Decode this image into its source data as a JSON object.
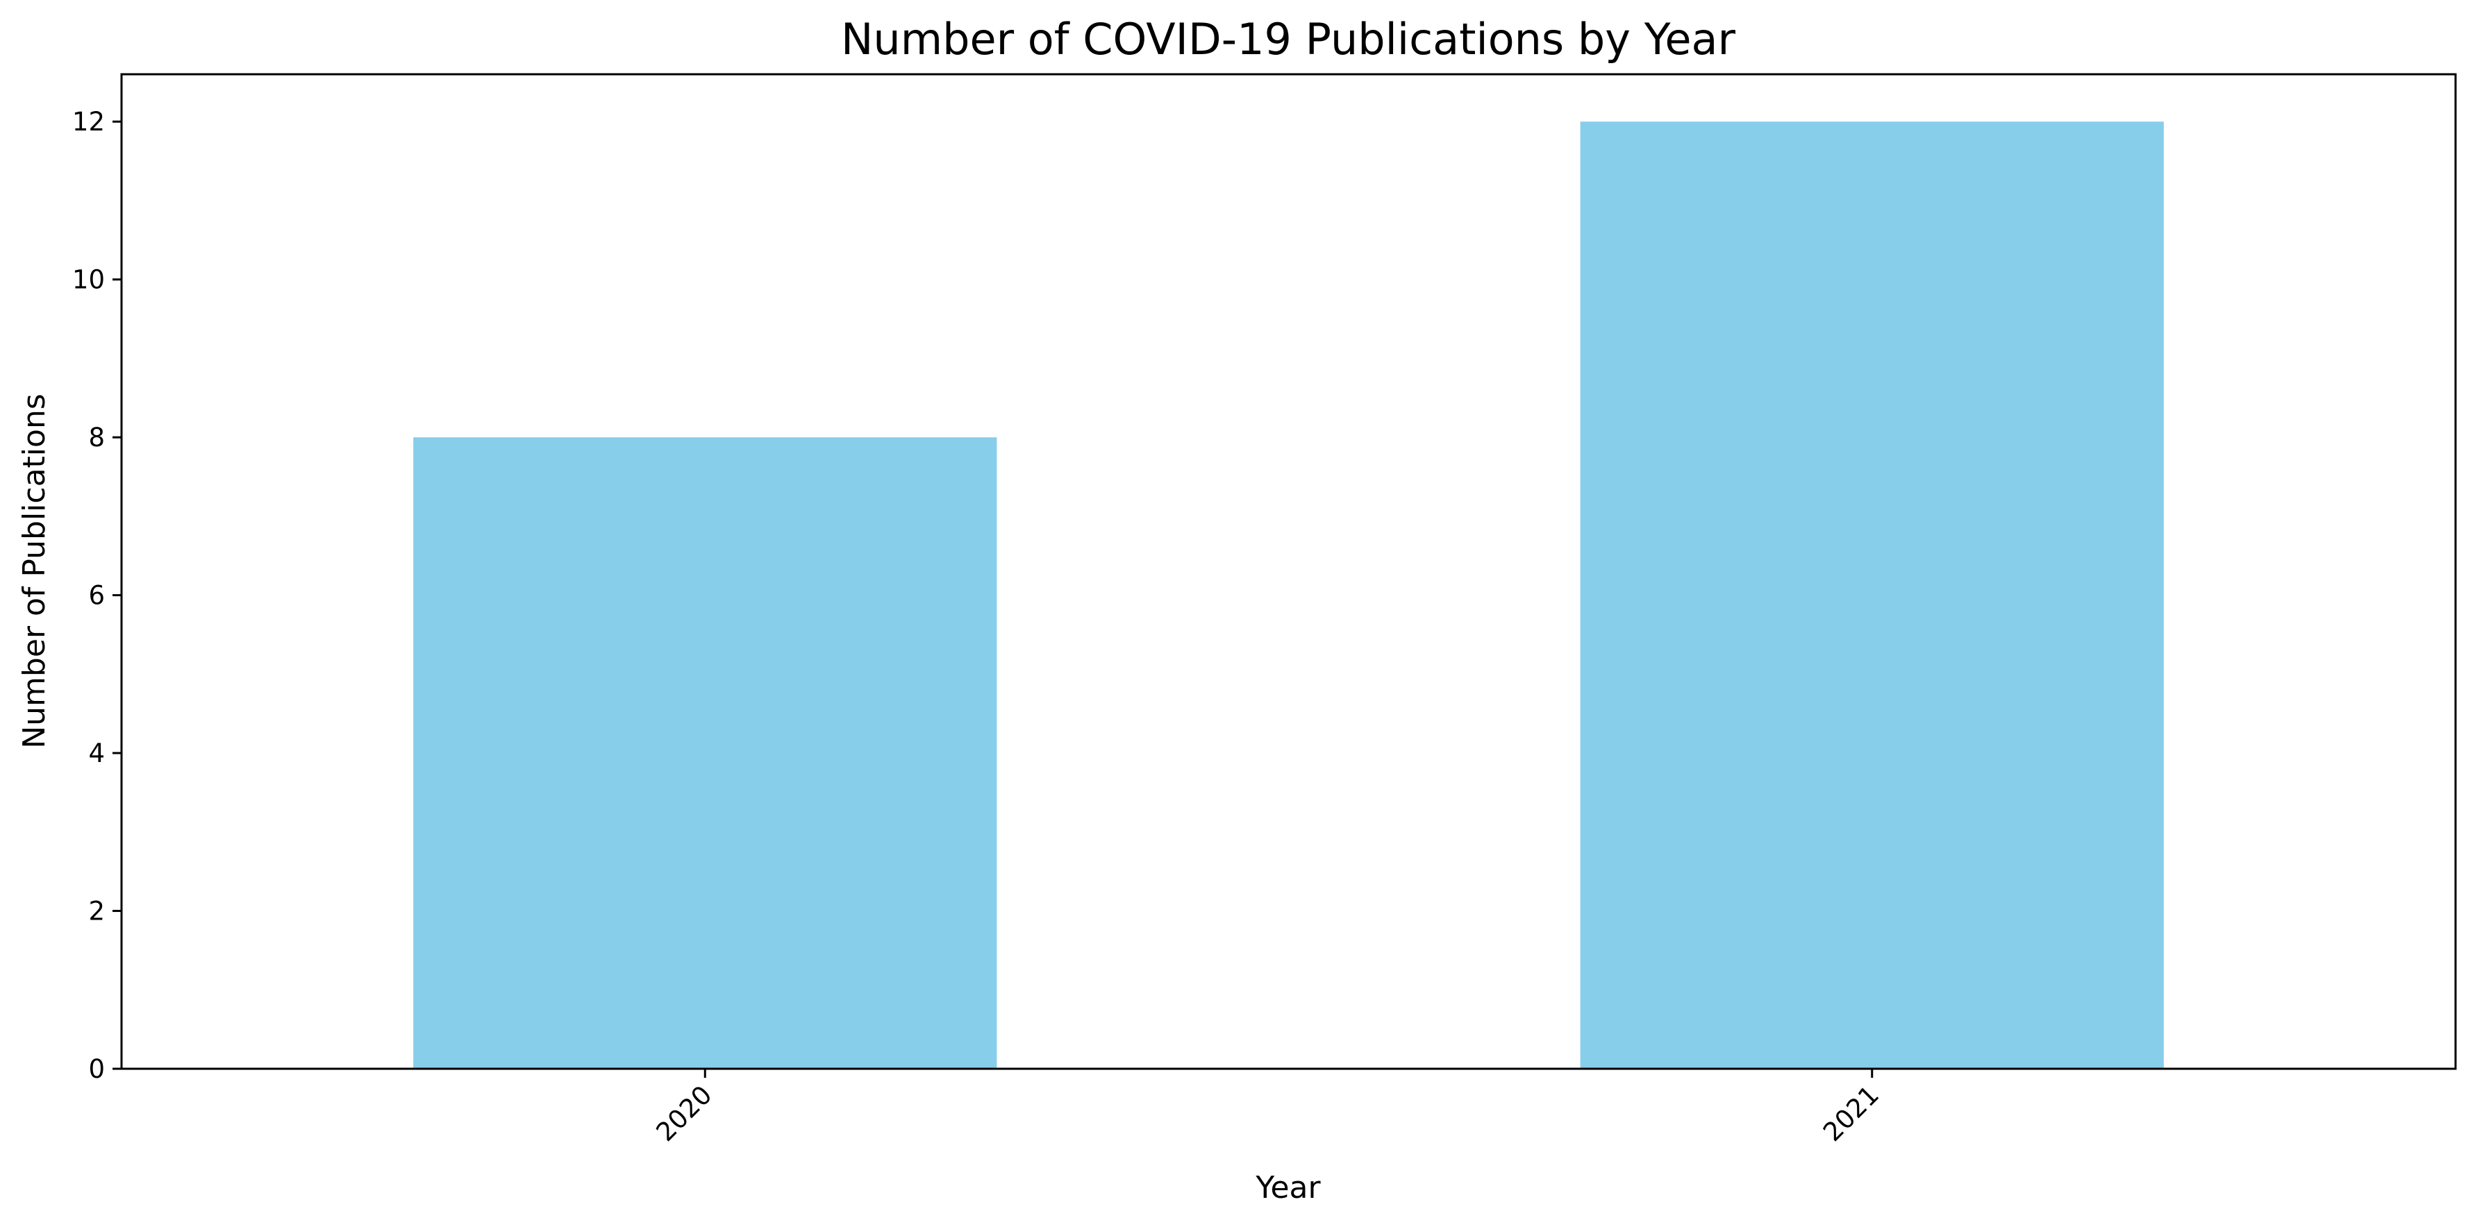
{
  "chart_data": {
    "type": "bar",
    "title": "Number of COVID-19 Publications by Year",
    "xlabel": "Year",
    "ylabel": "Number of Publications",
    "categories": [
      "2020",
      "2021"
    ],
    "values": [
      8,
      12
    ],
    "ylim": [
      0,
      12.6
    ],
    "yticks": [
      0,
      2,
      4,
      6,
      8,
      10,
      12
    ],
    "ytick_labels": [
      "0",
      "2",
      "4",
      "6",
      "8",
      "10",
      "12"
    ],
    "bar_color": "#87CEEB",
    "grid": false,
    "legend": false,
    "x_tick_rotation_deg": 45
  }
}
